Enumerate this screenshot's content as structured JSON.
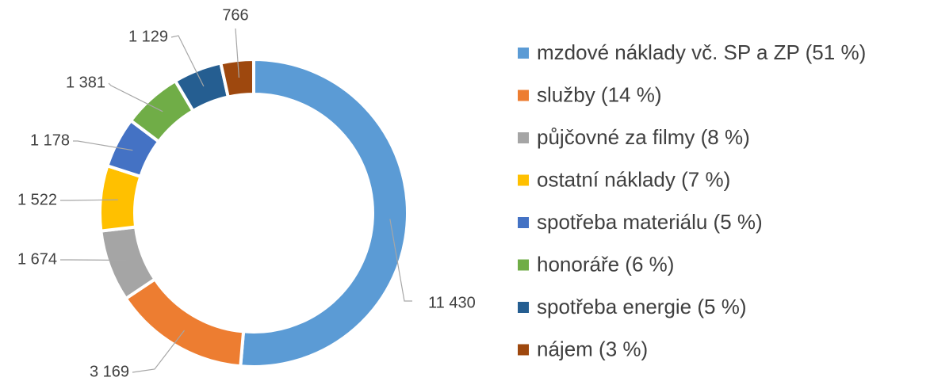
{
  "chart_data": {
    "type": "donut",
    "categories": [
      "mzdové náklady vč. SP a ZP (51 %)",
      "služby (14 %)",
      "půjčovné za filmy (8 %)",
      "ostatní náklady (7 %)",
      "spotřeba materiálu (5 %)",
      "honoráře (6 %)",
      "spotřeba energie (5 %)",
      "nájem (3 %)"
    ],
    "values": [
      11430,
      3169,
      1674,
      1522,
      1178,
      1381,
      1129,
      766
    ],
    "value_labels": [
      "11 430",
      "3 169",
      "1 674",
      "1 522",
      "1 178",
      "1 381",
      "1 129",
      "766"
    ],
    "colors": [
      "#5b9bd5",
      "#ed7d31",
      "#a5a5a5",
      "#ffc000",
      "#4472c4",
      "#70ad47",
      "#255e91",
      "#9e480e"
    ],
    "legend": "right"
  }
}
